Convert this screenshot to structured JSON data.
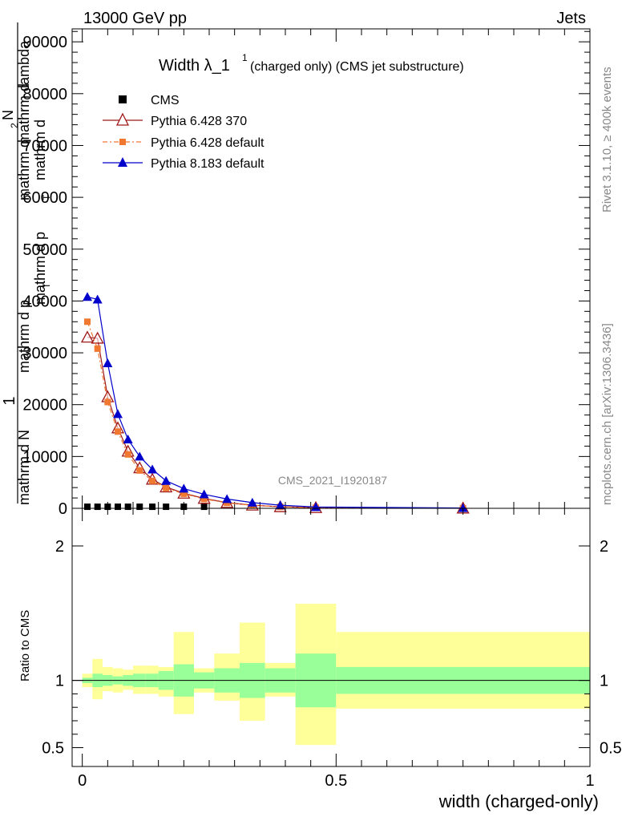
{
  "header": {
    "energy_label": "13000 GeV pp",
    "category_label": "Jets"
  },
  "side_labels": {
    "rivet_version": "Rivet 3.1.10, ≥ 400k events",
    "mcplots_credit": "mcplots.cern.ch [arXiv:1306.3436]"
  },
  "analysis_tag": "CMS_2021_I1920187",
  "chart_data": [
    {
      "type": "line",
      "title_main": "Width λ_1",
      "title_sup": "1",
      "title_rest": "(charged only) (CMS jet substructure)",
      "xlabel": "width (charged-only)",
      "ylabel_parts": [
        "1",
        "mathrm d N",
        "mathrm d p",
        "T",
        "mathrm d",
        "mathrm d p",
        "T",
        "mathrm d",
        "lambda",
        "mathrm d",
        "2",
        "N"
      ],
      "xlim": [
        -0.02,
        1.0
      ],
      "ylim": [
        0,
        92500
      ],
      "y_ticks": [
        0,
        10000,
        20000,
        30000,
        40000,
        50000,
        60000,
        70000,
        80000,
        90000
      ],
      "y_tick_labels": [
        "0",
        "10000",
        "20000",
        "30000",
        "40000",
        "50000",
        "60000",
        "70000",
        "80000",
        "90000"
      ],
      "legend_position": "top-left",
      "series": [
        {
          "name": "CMS",
          "color": "#000000",
          "marker": "square",
          "x": [
            0.01,
            0.03,
            0.05,
            0.07,
            0.09,
            0.113,
            0.138,
            0.165,
            0.2,
            0.24
          ],
          "y": [
            300,
            300,
            300,
            300,
            300,
            300,
            300,
            300,
            300,
            300
          ]
        },
        {
          "name": "Pythia 6.428 370",
          "color": "#a01818",
          "marker": "open-triangle",
          "x": [
            0.01,
            0.03,
            0.05,
            0.07,
            0.09,
            0.113,
            0.138,
            0.165,
            0.2,
            0.24,
            0.285,
            0.335,
            0.39,
            0.46,
            0.75
          ],
          "y": [
            33000,
            32800,
            21500,
            15500,
            11000,
            7800,
            5600,
            4100,
            2900,
            1900,
            1100,
            600,
            300,
            120,
            30
          ]
        },
        {
          "name": "Pythia 6.428 default",
          "color": "#f07830",
          "marker": "filled-square",
          "x": [
            0.01,
            0.03,
            0.05,
            0.07,
            0.09,
            0.113,
            0.138,
            0.165,
            0.2,
            0.24,
            0.285,
            0.335,
            0.39,
            0.46,
            0.75
          ],
          "y": [
            36000,
            30800,
            20500,
            14800,
            10400,
            7300,
            5300,
            3900,
            2800,
            1800,
            1050,
            580,
            290,
            110,
            30
          ]
        },
        {
          "name": "Pythia 8.183 default",
          "color": "#0000cc",
          "marker": "filled-triangle",
          "x": [
            0.01,
            0.03,
            0.05,
            0.07,
            0.09,
            0.113,
            0.138,
            0.165,
            0.2,
            0.24,
            0.285,
            0.335,
            0.39,
            0.46,
            0.75
          ],
          "y": [
            40800,
            40300,
            28000,
            18200,
            13300,
            10000,
            7500,
            5300,
            3800,
            2700,
            1800,
            1100,
            600,
            250,
            60
          ]
        }
      ]
    },
    {
      "type": "area",
      "ylabel": "Ratio to CMS",
      "xlim": [
        -0.02,
        1.0
      ],
      "ylim": [
        0.36,
        2.28
      ],
      "y_ticks": [
        0.5,
        1,
        2
      ],
      "y_tick_labels": [
        "0.5",
        "1",
        "2"
      ],
      "x_ticks": [
        0,
        0.5,
        1
      ],
      "x_tick_labels": [
        "0",
        "0.5",
        "1"
      ],
      "reference_line": 1,
      "bands": {
        "bin_edges": [
          0.0,
          0.02,
          0.04,
          0.06,
          0.08,
          0.1,
          0.125,
          0.15,
          0.18,
          0.22,
          0.26,
          0.31,
          0.36,
          0.42,
          0.5,
          1.0
        ],
        "stat_low": [
          0.98,
          0.95,
          0.96,
          0.97,
          0.96,
          0.95,
          0.95,
          0.93,
          0.88,
          0.94,
          0.91,
          0.87,
          0.91,
          0.8,
          0.9
        ],
        "stat_high": [
          1.02,
          1.05,
          1.04,
          1.03,
          1.04,
          1.05,
          1.05,
          1.07,
          1.12,
          1.06,
          1.09,
          1.13,
          1.09,
          1.2,
          1.1
        ],
        "total_low": [
          0.95,
          0.86,
          0.92,
          0.91,
          0.93,
          0.9,
          0.9,
          0.88,
          0.75,
          0.91,
          0.85,
          0.7,
          0.88,
          0.52,
          0.79
        ],
        "total_high": [
          1.05,
          1.16,
          1.1,
          1.09,
          1.08,
          1.11,
          1.11,
          1.1,
          1.36,
          1.09,
          1.2,
          1.43,
          1.13,
          1.57,
          1.36
        ],
        "stat_color": "#99ff99",
        "total_color": "#ffff99"
      }
    }
  ]
}
